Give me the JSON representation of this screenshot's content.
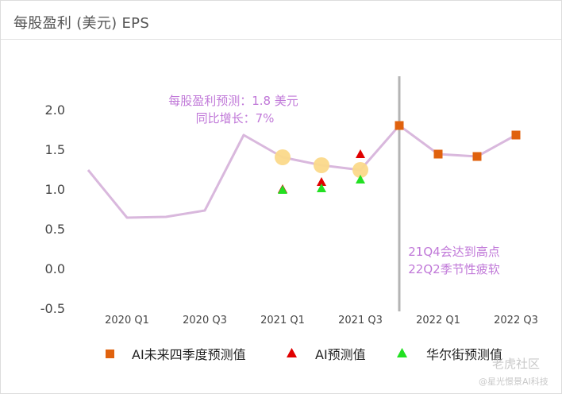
{
  "header": {
    "title": "每股盈利 (美元) EPS"
  },
  "annotations": {
    "forecast_line1": "每股盈利预测：1.8 美元",
    "forecast_line2": "同比增长：7%",
    "peak_line1": "21Q4会达到高点",
    "peak_line2": "22Q2季节性疲软"
  },
  "watermark": {
    "line1": "老虎社区",
    "line2": "@星光憬景AI科技"
  },
  "colors": {
    "eps_line": "#d9b8dd",
    "highlight": "#fbd98a",
    "ai_future": "#e0620e",
    "ai_pred": "#e00000",
    "wallst": "#22e022",
    "divider": "#b4b4b4",
    "annotation": "#c078d8"
  },
  "chart_data": {
    "type": "line",
    "title": "每股盈利 (美元) EPS",
    "xlabel": "",
    "ylabel": "",
    "ylim": [
      -0.5,
      2.0
    ],
    "y_ticks": [
      "2.0",
      "1.5",
      "1.0",
      "0.5",
      "0.0",
      "-0.5"
    ],
    "x_tick_labels": [
      "2020 Q1",
      "2020 Q3",
      "2021 Q1",
      "2021 Q3",
      "2022 Q1",
      "2022 Q3"
    ],
    "x": [
      "2019 Q4",
      "2020 Q1",
      "2020 Q2",
      "2020 Q3",
      "2020 Q4",
      "2021 Q1",
      "2021 Q2",
      "2021 Q3",
      "2021 Q4",
      "2022 Q1",
      "2022 Q2",
      "2022 Q3"
    ],
    "eps_line": [
      1.24,
      0.64,
      0.65,
      0.73,
      1.68,
      1.4,
      1.3,
      1.24,
      1.8,
      1.44,
      1.41,
      1.68
    ],
    "highlighted_points": [
      {
        "x": "2021 Q1",
        "y": 1.4
      },
      {
        "x": "2021 Q2",
        "y": 1.3
      },
      {
        "x": "2021 Q3",
        "y": 1.24
      }
    ],
    "series": [
      {
        "name": "AI未来四季度预测值",
        "marker": "square",
        "x": [
          "2021 Q4",
          "2022 Q1",
          "2022 Q2",
          "2022 Q3"
        ],
        "values": [
          1.8,
          1.44,
          1.41,
          1.68
        ]
      },
      {
        "name": "AI预测值",
        "marker": "triangle",
        "x": [
          "2021 Q1",
          "2021 Q2",
          "2021 Q3"
        ],
        "values": [
          1.0,
          1.09,
          1.44
        ]
      },
      {
        "name": "华尔街预测值",
        "marker": "triangle",
        "x": [
          "2021 Q1",
          "2021 Q2",
          "2021 Q3"
        ],
        "values": [
          0.99,
          1.01,
          1.12
        ]
      }
    ],
    "divider_at": "2021 Q4",
    "grid": false,
    "legend_position": "bottom"
  }
}
